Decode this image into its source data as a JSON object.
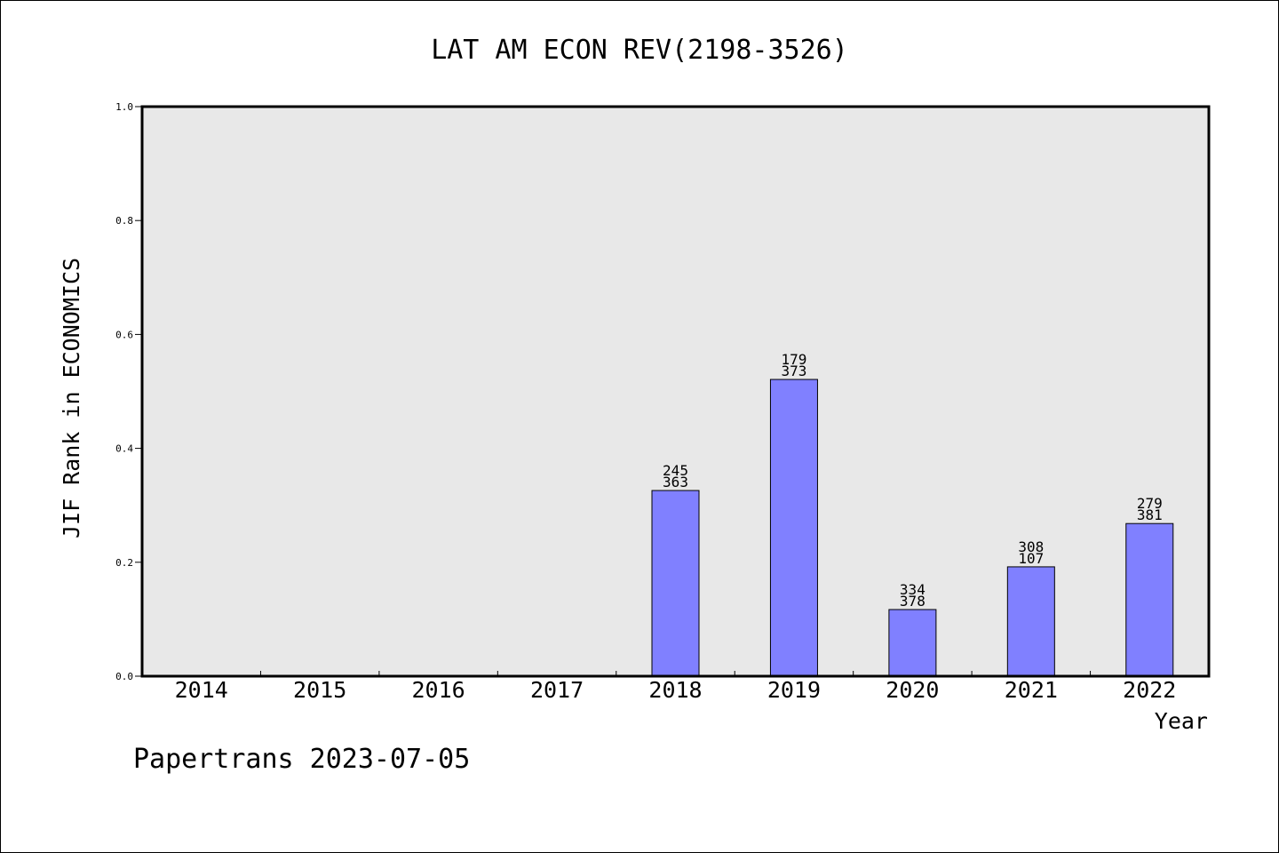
{
  "chart_data": {
    "type": "bar",
    "title": "LAT AM ECON REV(2198-3526)",
    "xlabel": "Year",
    "ylabel": "JIF Rank in ECONOMICS",
    "ylim": [
      0,
      1.0
    ],
    "yticks": [
      "0.0",
      "0.2",
      "0.4",
      "0.6",
      "0.8",
      "1.0"
    ],
    "categories": [
      "2014",
      "2015",
      "2016",
      "2017",
      "2018",
      "2019",
      "2020",
      "2021",
      "2022"
    ],
    "values": [
      null,
      null,
      null,
      null,
      0.326,
      0.521,
      0.117,
      0.192,
      0.268
    ],
    "labels_top": [
      "",
      "",
      "",
      "",
      "245",
      "179",
      "334",
      "308",
      "279"
    ],
    "labels_bottom": [
      "",
      "",
      "",
      "",
      "363",
      "373",
      "378",
      "107",
      "381"
    ],
    "bar_color": "#8080ff",
    "plot_bg": "#e8e8e8",
    "grid": false
  },
  "footer": {
    "text": "Papertrans 2023-07-05"
  }
}
